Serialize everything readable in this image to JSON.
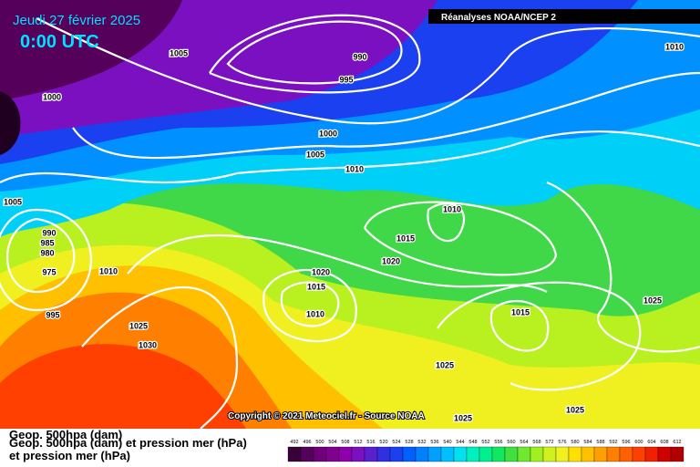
{
  "header": {
    "date": "Jeudi 27 février 2025",
    "time": "0:00 UTC",
    "source": "Réanalyses NOAA/NCEP 2"
  },
  "isobar_labels": [
    "1005",
    "990",
    "995",
    "1000",
    "1000",
    "1005",
    "1010",
    "1010",
    "1005",
    "990",
    "985",
    "980",
    "975",
    "995",
    "1010",
    "1010",
    "1015",
    "1020",
    "1020",
    "1015",
    "1010",
    "1025",
    "1030",
    "1015",
    "1025",
    "1025",
    "1025",
    "1025"
  ],
  "copyright": "Copyright © 2021 Meteociel.fr - Source NOAA",
  "legend": {
    "title": "Geop. 500hpa (dam)",
    "full": "Geop. 500hpa (dam) et pression mer (hPa)",
    "line2": "et pression mer (hPa)"
  },
  "colorbar": {
    "labels": [
      492,
      496,
      500,
      504,
      508,
      512,
      516,
      520,
      524,
      528,
      532,
      536,
      540,
      544,
      548,
      552,
      556,
      560,
      564,
      568,
      572,
      576,
      580,
      584,
      588,
      592,
      596,
      600,
      604,
      608,
      612
    ],
    "colors": [
      "#3a003a",
      "#55005a",
      "#6e0078",
      "#800090",
      "#9000a8",
      "#7a10c0",
      "#5a20d0",
      "#3030e0",
      "#1a40f0",
      "#0060ff",
      "#0080ff",
      "#00a0ff",
      "#00c0ff",
      "#00e0f0",
      "#00f0c0",
      "#00f090",
      "#10e860",
      "#40e040",
      "#70e830",
      "#a0f020",
      "#d0f020",
      "#f0f020",
      "#ffe000",
      "#ffc000",
      "#ffa000",
      "#ff8000",
      "#ff6000",
      "#ff4000",
      "#f02000",
      "#d00000",
      "#b00000"
    ]
  }
}
